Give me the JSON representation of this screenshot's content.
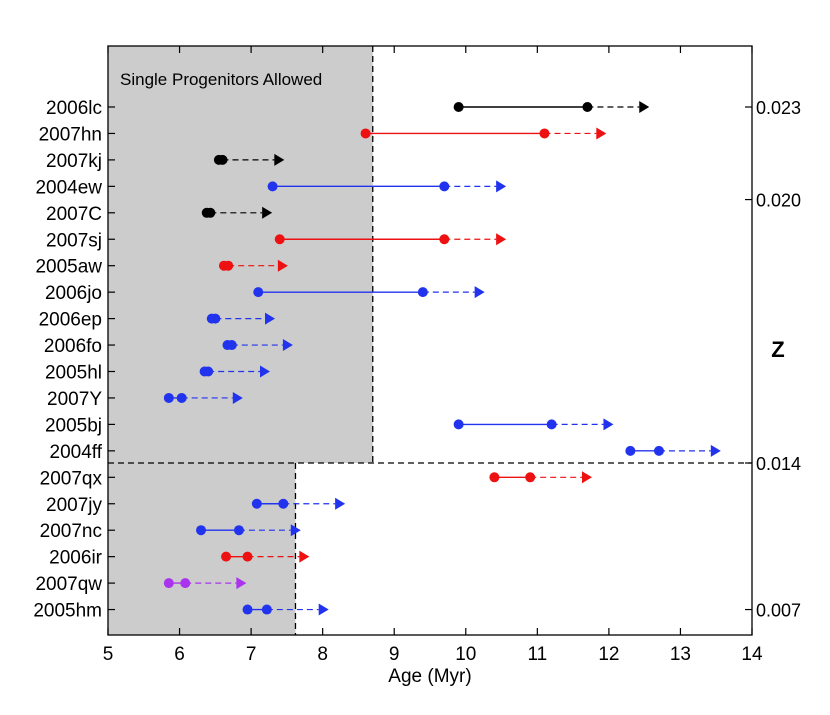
{
  "chart_data": {
    "type": "scatter",
    "title": "",
    "xlabel": "Age (Myr)",
    "ylabel": "",
    "right_axis_label": "Z",
    "xlim": [
      5,
      14
    ],
    "x_ticks": [
      "5",
      "6",
      "7",
      "8",
      "9",
      "10",
      "11",
      "12",
      "13",
      "14"
    ],
    "annotation": "Single Progenitors Allowed",
    "shaded_regions": [
      {
        "name": "upper",
        "x_max": 8.7,
        "rows_from": "2006lc",
        "rows_to": "2004ff"
      },
      {
        "name": "lower",
        "x_max": 7.62,
        "rows_from": "2007qx",
        "rows_to": "2005hm"
      }
    ],
    "separator_between": [
      "2004ff",
      "2007qx"
    ],
    "z_ticks": [
      {
        "label": "0.023",
        "row": "2006lc"
      },
      {
        "label": "0.020",
        "row": "2004ew_2007C"
      },
      {
        "label": "0.014",
        "row": "separator"
      },
      {
        "label": "0.007",
        "row": "2005hm"
      }
    ],
    "colors": {
      "black": "#000000",
      "red": "#ee1111",
      "blue": "#2233ee",
      "purple": "#aa33ee",
      "shade": "#cccccc"
    },
    "series": [
      {
        "name": "2006lc",
        "color": "black",
        "start": 9.9,
        "mid": 11.7,
        "arrow": 12.55
      },
      {
        "name": "2007hn",
        "color": "red",
        "start": 8.6,
        "mid": 11.1,
        "arrow": 11.95
      },
      {
        "name": "2007kj",
        "color": "black",
        "start": 6.55,
        "mid": 6.6,
        "arrow": 7.45
      },
      {
        "name": "2004ew",
        "color": "blue",
        "start": 7.3,
        "mid": 9.7,
        "arrow": 10.55
      },
      {
        "name": "2007C",
        "color": "black",
        "start": 6.38,
        "mid": 6.43,
        "arrow": 7.28
      },
      {
        "name": "2007sj",
        "color": "red",
        "start": 7.4,
        "mid": 9.7,
        "arrow": 10.55
      },
      {
        "name": "2005aw",
        "color": "red",
        "start": 6.62,
        "mid": 6.68,
        "arrow": 7.5
      },
      {
        "name": "2006jo",
        "color": "blue",
        "start": 7.1,
        "mid": 9.4,
        "arrow": 10.25
      },
      {
        "name": "2006ep",
        "color": "blue",
        "start": 6.45,
        "mid": 6.5,
        "arrow": 7.32
      },
      {
        "name": "2006fo",
        "color": "blue",
        "start": 6.67,
        "mid": 6.73,
        "arrow": 7.57
      },
      {
        "name": "2005hl",
        "color": "blue",
        "start": 6.35,
        "mid": 6.4,
        "arrow": 7.25
      },
      {
        "name": "2007Y",
        "color": "blue",
        "start": 5.85,
        "mid": 6.03,
        "arrow": 6.87
      },
      {
        "name": "2005bj",
        "color": "blue",
        "start": 9.9,
        "mid": 11.2,
        "arrow": 12.05
      },
      {
        "name": "2004ff",
        "color": "blue",
        "start": 12.3,
        "mid": 12.7,
        "arrow": 13.55
      },
      {
        "name": "2007qx",
        "color": "red",
        "start": 10.4,
        "mid": 10.9,
        "arrow": 11.75
      },
      {
        "name": "2007jy",
        "color": "blue",
        "start": 7.08,
        "mid": 7.45,
        "arrow": 8.3
      },
      {
        "name": "2007nc",
        "color": "blue",
        "start": 6.3,
        "mid": 6.83,
        "arrow": 7.68
      },
      {
        "name": "2006ir",
        "color": "red",
        "start": 6.65,
        "mid": 6.95,
        "arrow": 7.8
      },
      {
        "name": "2007qw",
        "color": "purple",
        "start": 5.85,
        "mid": 6.08,
        "arrow": 6.92
      },
      {
        "name": "2005hm",
        "color": "blue",
        "start": 6.95,
        "mid": 7.22,
        "arrow": 8.07
      }
    ]
  }
}
